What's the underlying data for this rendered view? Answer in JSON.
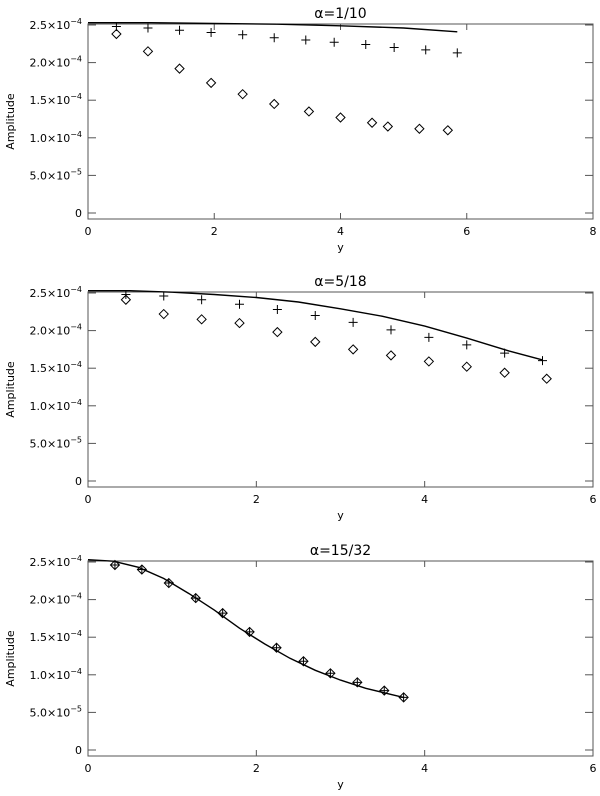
{
  "chart_data": [
    {
      "type": "scatter",
      "title": "α=1/10",
      "xlabel": "y",
      "ylabel": "Amplitude",
      "xlim": [
        0,
        8
      ],
      "ylim": [
        0,
        0.00025
      ],
      "xticks": [
        0,
        2,
        4,
        6,
        8
      ],
      "xtick_labels": [
        "0",
        "2",
        "4",
        "6",
        "8"
      ],
      "yticks": [
        0,
        5e-05,
        0.0001,
        0.00015,
        0.0002,
        0.00025
      ],
      "ytick_labels": [
        {
          "mantissa": "0",
          "exp": ""
        },
        {
          "mantissa": "5.0×10",
          "exp": "−5"
        },
        {
          "mantissa": "1.0×10",
          "exp": "−4"
        },
        {
          "mantissa": "1.5×10",
          "exp": "−4"
        },
        {
          "mantissa": "2.0×10",
          "exp": "−4"
        },
        {
          "mantissa": "2.5×10",
          "exp": "−4"
        }
      ],
      "grid": false,
      "series": [
        {
          "marker": "line",
          "x": [
            0,
            1,
            2,
            3,
            4,
            5,
            5.85
          ],
          "y": [
            0.000253,
            0.000253,
            0.000252,
            0.000251,
            0.000249,
            0.000246,
            0.000241
          ]
        },
        {
          "marker": "plus",
          "x": [
            0.45,
            0.95,
            1.45,
            1.95,
            2.45,
            2.95,
            3.45,
            3.9,
            4.4,
            4.85,
            5.35,
            5.85
          ],
          "y": [
            0.000248,
            0.000246,
            0.000243,
            0.00024,
            0.000237,
            0.000233,
            0.00023,
            0.000227,
            0.000224,
            0.00022,
            0.000217,
            0.000213
          ]
        },
        {
          "marker": "diamond",
          "x": [
            0.45,
            0.95,
            1.45,
            1.95,
            2.45,
            2.95,
            3.5,
            4.0,
            4.5,
            4.75,
            5.25,
            5.7
          ],
          "y": [
            0.000238,
            0.000215,
            0.000192,
            0.000173,
            0.000158,
            0.000145,
            0.000135,
            0.000127,
            0.00012,
            0.000115,
            0.000112,
            0.00011
          ]
        }
      ]
    },
    {
      "type": "scatter",
      "title": "α=5/18",
      "xlabel": "y",
      "ylabel": "Amplitude",
      "xlim": [
        0,
        6
      ],
      "ylim": [
        0,
        0.00025
      ],
      "xticks": [
        0,
        2,
        4,
        6
      ],
      "xtick_labels": [
        "0",
        "2",
        "4",
        "6"
      ],
      "yticks": [
        0,
        5e-05,
        0.0001,
        0.00015,
        0.0002,
        0.00025
      ],
      "ytick_labels": [
        {
          "mantissa": "0",
          "exp": ""
        },
        {
          "mantissa": "5.0×10",
          "exp": "−5"
        },
        {
          "mantissa": "1.0×10",
          "exp": "−4"
        },
        {
          "mantissa": "1.5×10",
          "exp": "−4"
        },
        {
          "mantissa": "2.0×10",
          "exp": "−4"
        },
        {
          "mantissa": "2.5×10",
          "exp": "−4"
        }
      ],
      "grid": false,
      "series": [
        {
          "marker": "line",
          "x": [
            0,
            0.5,
            1,
            1.5,
            2,
            2.5,
            3,
            3.5,
            4,
            4.5,
            5,
            5.4
          ],
          "y": [
            0.000253,
            0.000253,
            0.000251,
            0.000248,
            0.000244,
            0.000238,
            0.000229,
            0.000219,
            0.000206,
            0.00019,
            0.000173,
            0.000161
          ]
        },
        {
          "marker": "plus",
          "x": [
            0.45,
            0.9,
            1.35,
            1.8,
            2.25,
            2.7,
            3.15,
            3.6,
            4.05,
            4.5,
            4.95,
            5.4
          ],
          "y": [
            0.000248,
            0.000246,
            0.000241,
            0.000235,
            0.000228,
            0.00022,
            0.000211,
            0.000201,
            0.000191,
            0.000181,
            0.00017,
            0.00016
          ]
        },
        {
          "marker": "diamond",
          "x": [
            0.45,
            0.9,
            1.35,
            1.8,
            2.25,
            2.7,
            3.15,
            3.6,
            4.05,
            4.5,
            4.95,
            5.45
          ],
          "y": [
            0.000241,
            0.000222,
            0.000215,
            0.00021,
            0.000198,
            0.000185,
            0.000175,
            0.000167,
            0.000159,
            0.000152,
            0.000144,
            0.000136
          ]
        }
      ]
    },
    {
      "type": "scatter",
      "title": "α=15/32",
      "xlabel": "y",
      "ylabel": "Amplitude",
      "xlim": [
        0,
        6
      ],
      "ylim": [
        0,
        0.00025
      ],
      "xticks": [
        0,
        2,
        4,
        6
      ],
      "xtick_labels": [
        "0",
        "2",
        "4",
        "6"
      ],
      "yticks": [
        0,
        5e-05,
        0.0001,
        0.00015,
        0.0002,
        0.00025
      ],
      "ytick_labels": [
        {
          "mantissa": "0",
          "exp": ""
        },
        {
          "mantissa": "5.0×10",
          "exp": "−5"
        },
        {
          "mantissa": "1.0×10",
          "exp": "−4"
        },
        {
          "mantissa": "1.5×10",
          "exp": "−4"
        },
        {
          "mantissa": "2.0×10",
          "exp": "−4"
        },
        {
          "mantissa": "2.5×10",
          "exp": "−4"
        }
      ],
      "grid": false,
      "series": [
        {
          "marker": "line",
          "x": [
            0,
            0.3,
            0.6,
            0.9,
            1.2,
            1.5,
            1.8,
            2.1,
            2.4,
            2.7,
            3.0,
            3.3,
            3.6,
            3.75
          ],
          "y": [
            0.000253,
            0.000251,
            0.000243,
            0.000228,
            0.000208,
            0.000186,
            0.000162,
            0.000141,
            0.000122,
            0.000106,
            9.3e-05,
            8.2e-05,
            7.4e-05,
            7e-05
          ]
        },
        {
          "marker": "plus",
          "x": [
            0.32,
            0.64,
            0.96,
            1.28,
            1.6,
            1.92,
            2.24,
            2.56,
            2.88,
            3.2,
            3.52,
            3.75
          ],
          "y": [
            0.000246,
            0.00024,
            0.000222,
            0.000202,
            0.000182,
            0.000157,
            0.000136,
            0.000118,
            0.000102,
            9e-05,
            7.9e-05,
            7e-05
          ]
        },
        {
          "marker": "diamond",
          "x": [
            0.32,
            0.64,
            0.96,
            1.28,
            1.6,
            1.92,
            2.24,
            2.56,
            2.88,
            3.2,
            3.52,
            3.75
          ],
          "y": [
            0.000246,
            0.00024,
            0.000222,
            0.000202,
            0.000182,
            0.000157,
            0.000136,
            0.000118,
            0.000102,
            9e-05,
            7.9e-05,
            7e-05
          ]
        }
      ]
    }
  ]
}
